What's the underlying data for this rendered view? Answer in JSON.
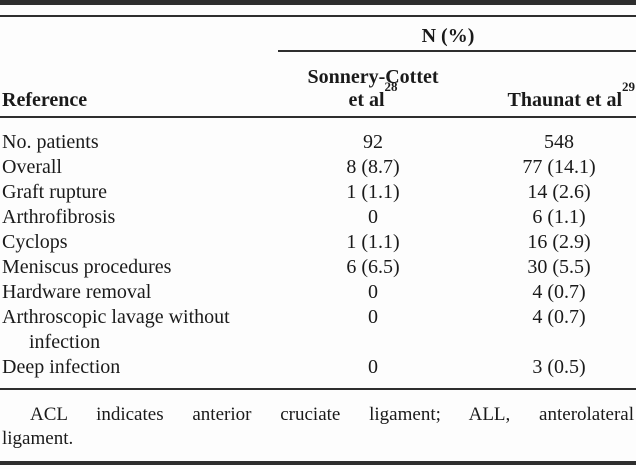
{
  "table": {
    "span_header": "N (%)",
    "columns": {
      "reference": "Reference",
      "sonnery_line1": "Sonnery-Cottet",
      "sonnery_line2": "et al",
      "sonnery_ref": "28",
      "thaunat_label": "Thaunat et al",
      "thaunat_ref": "29"
    },
    "rows": [
      {
        "label": "No. patients",
        "sonnery": "92",
        "thaunat": "548"
      },
      {
        "label": "Overall",
        "sonnery": "8 (8.7)",
        "thaunat": "77 (14.1)"
      },
      {
        "label": "Graft rupture",
        "sonnery": "1 (1.1)",
        "thaunat": "14 (2.6)"
      },
      {
        "label": "Arthrofibrosis",
        "sonnery": "0",
        "thaunat": "6 (1.1)"
      },
      {
        "label": "Cyclops",
        "sonnery": "1 (1.1)",
        "thaunat": "16 (2.9)"
      },
      {
        "label": "Meniscus procedures",
        "sonnery": "6 (6.5)",
        "thaunat": "30 (5.5)"
      },
      {
        "label": "Hardware removal",
        "sonnery": "0",
        "thaunat": "4 (0.7)"
      },
      {
        "label": "Arthroscopic lavage without",
        "label_line2": "infection",
        "sonnery": "0",
        "thaunat": "4 (0.7)"
      },
      {
        "label": "Deep infection",
        "sonnery": "0",
        "thaunat": "3 (0.5)"
      }
    ]
  },
  "footnote": {
    "line1": "ACL indicates anterior cruciate ligament; ALL, anterolateral",
    "line2": "ligament."
  },
  "colors": {
    "text": "#1a1a1a",
    "rule": "#2e2e2e",
    "background": "#fdfdfd"
  }
}
